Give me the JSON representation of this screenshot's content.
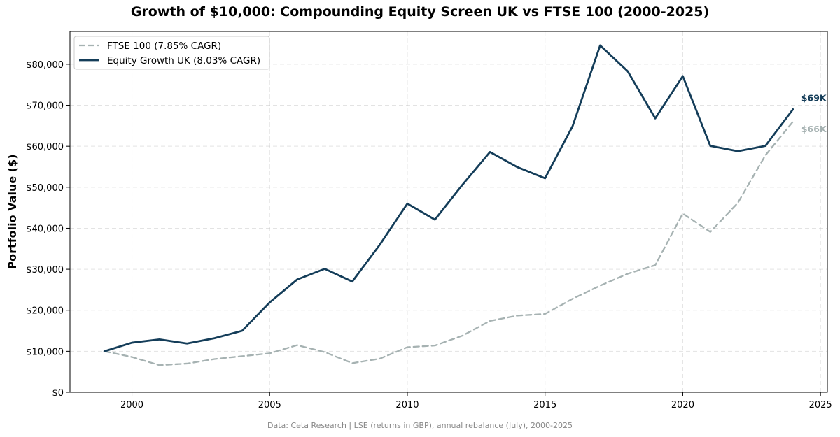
{
  "chart_data": {
    "type": "line",
    "title": "Growth of $10,000: Compounding Equity Screen UK vs FTSE 100 (2000-2025)",
    "xlabel": "",
    "ylabel": "Portfolio Value ($)",
    "xlim": [
      1997.75,
      2025.25
    ],
    "ylim": [
      0,
      88000
    ],
    "x_ticks": [
      2000,
      2005,
      2010,
      2015,
      2020,
      2025
    ],
    "y_ticks": [
      0,
      10000,
      20000,
      30000,
      40000,
      50000,
      60000,
      70000,
      80000
    ],
    "y_tick_labels": [
      "$0",
      "$10,000",
      "$20,000",
      "$30,000",
      "$40,000",
      "$50,000",
      "$60,000",
      "$70,000",
      "$80,000"
    ],
    "grid": true,
    "legend_position": "top-left",
    "x": [
      1999,
      2000,
      2001,
      2002,
      2003,
      2004,
      2005,
      2006,
      2007,
      2008,
      2009,
      2010,
      2011,
      2012,
      2013,
      2014,
      2015,
      2016,
      2017,
      2018,
      2019,
      2020,
      2021,
      2022,
      2023,
      2024
    ],
    "series": [
      {
        "name": "FTSE 100 (7.85% CAGR)",
        "color": "#a6b2b2",
        "style": "dashed",
        "end_label": "$66K",
        "values": [
          10000,
          8600,
          6600,
          7000,
          8100,
          8800,
          9500,
          11500,
          9800,
          7100,
          8200,
          11000,
          11400,
          13800,
          17400,
          18700,
          19100,
          22800,
          26000,
          28900,
          31000,
          43600,
          39100,
          46200,
          57800,
          66000
        ]
      },
      {
        "name": "Equity Growth UK (8.03% CAGR)",
        "color": "#143d59",
        "style": "solid",
        "end_label": "$69K",
        "values": [
          10000,
          12100,
          12900,
          11900,
          13200,
          15000,
          21900,
          27500,
          30100,
          27000,
          36000,
          46000,
          42100,
          50600,
          58600,
          54900,
          52200,
          64900,
          84600,
          78300,
          66800,
          77100,
          60100,
          58800,
          60100,
          69000
        ]
      }
    ]
  },
  "footnote": "Data: Ceta Research | LSE (returns in GBP), annual rebalance (July), 2000-2025"
}
